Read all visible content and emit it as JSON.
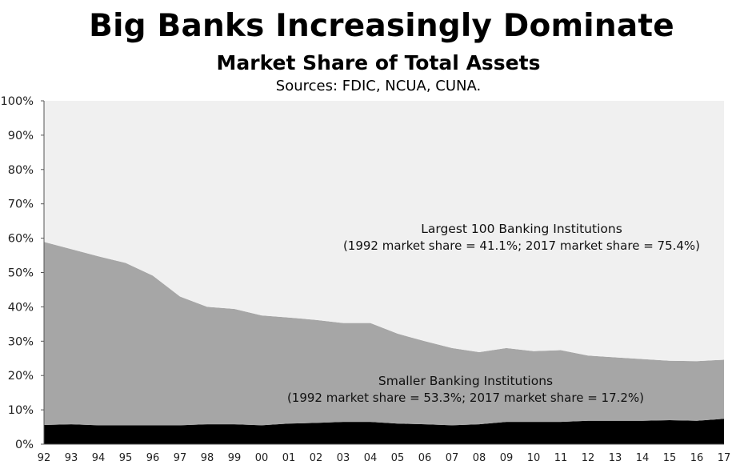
{
  "header": {
    "title": "Big Banks Increasingly Dominate",
    "subtitle": "Market Share of Total Assets",
    "sources": "Sources: FDIC, NCUA, CUNA."
  },
  "colors": {
    "largest": "#f0f0f0",
    "smaller": "#a6a6a6",
    "bottom": "#000000",
    "axis": "#555555"
  },
  "chart_data": {
    "type": "area",
    "stacked": true,
    "x": [
      "92",
      "93",
      "94",
      "95",
      "96",
      "97",
      "98",
      "99",
      "00",
      "01",
      "02",
      "03",
      "04",
      "05",
      "06",
      "07",
      "08",
      "09",
      "10",
      "11",
      "12",
      "13",
      "14",
      "15",
      "16",
      "17"
    ],
    "ylim": [
      0,
      100
    ],
    "yticks": [
      "0%",
      "10%",
      "20%",
      "30%",
      "40%",
      "50%",
      "60%",
      "70%",
      "80%",
      "90%",
      "100%"
    ],
    "grid": false,
    "series": [
      {
        "name": "bottom",
        "values": [
          5.6,
          5.8,
          5.5,
          5.5,
          5.5,
          5.5,
          5.8,
          5.8,
          5.5,
          6.0,
          6.2,
          6.5,
          6.5,
          6.0,
          5.8,
          5.5,
          5.8,
          6.5,
          6.5,
          6.5,
          6.8,
          6.8,
          6.8,
          7.0,
          6.8,
          7.4
        ]
      },
      {
        "name": "Smaller Banking Institutions",
        "values": [
          53.3,
          51.0,
          49.2,
          47.3,
          43.6,
          37.5,
          34.2,
          33.6,
          32.0,
          30.9,
          30.0,
          28.8,
          28.8,
          26.2,
          24.2,
          22.5,
          21.0,
          21.5,
          20.6,
          20.9,
          19.0,
          18.5,
          18.0,
          17.3,
          17.4,
          17.2
        ]
      },
      {
        "name": "Largest 100 Banking Institutions",
        "values": [
          41.1,
          43.2,
          45.3,
          47.2,
          50.9,
          57.0,
          60.0,
          60.6,
          62.5,
          63.1,
          63.8,
          64.7,
          64.7,
          67.8,
          70.0,
          72.0,
          73.2,
          72.0,
          72.9,
          72.6,
          74.2,
          74.7,
          75.2,
          75.7,
          75.8,
          75.4
        ]
      }
    ],
    "annotations": [
      {
        "line1": "Largest 100 Banking Institutions",
        "line2": "(1992 market share = 41.1%; 2017 market share = 75.4%)"
      },
      {
        "line1": "Smaller Banking Institutions",
        "line2": "(1992 market share = 53.3%; 2017 market share = 17.2%)"
      }
    ]
  }
}
